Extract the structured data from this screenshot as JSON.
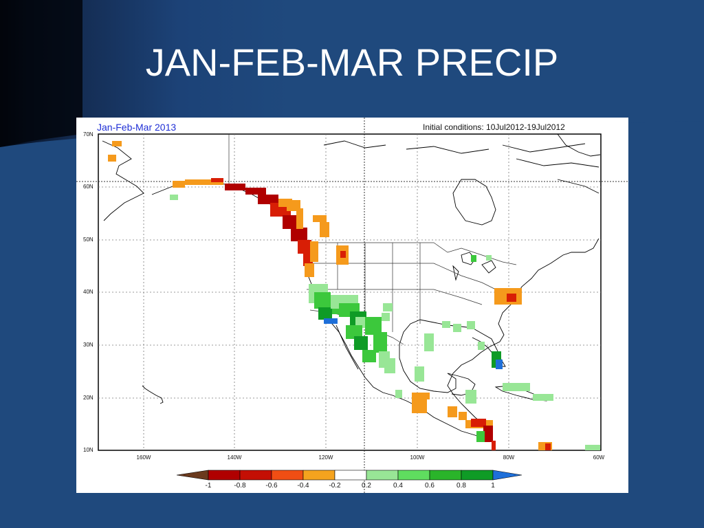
{
  "slide": {
    "title": "JAN-FEB-MAR PRECIP"
  },
  "map": {
    "title": "Jan-Feb-Mar 2013",
    "initial_conditions": "Initial conditions: 10Jul2012-19Jul2012",
    "lat_labels": [
      "70N",
      "60N",
      "50N",
      "40N",
      "30N",
      "20N",
      "10N"
    ],
    "lon_labels": [
      "160W",
      "140W",
      "120W",
      "100W",
      "80W",
      "60W"
    ],
    "colorbar": {
      "labels": [
        "-1",
        "-0.8",
        "-0.6",
        "-0.4",
        "-0.2",
        "0.2",
        "0.4",
        "0.6",
        "0.8",
        "1"
      ],
      "colors": [
        "#6b3a1e",
        "#b00000",
        "#d81e05",
        "#f04e14",
        "#f5a31e",
        "#ffffff",
        "#98e696",
        "#5fdd5f",
        "#2ab42a",
        "#0f9b26",
        "#1e6fd9"
      ]
    },
    "colors": {
      "dark_red": "#b00000",
      "red": "#d81e05",
      "orange": "#f59a1c",
      "light_green": "#98e696",
      "green": "#3cc83c",
      "dark_green": "#0f9b26",
      "blue": "#1e6fd9"
    }
  }
}
